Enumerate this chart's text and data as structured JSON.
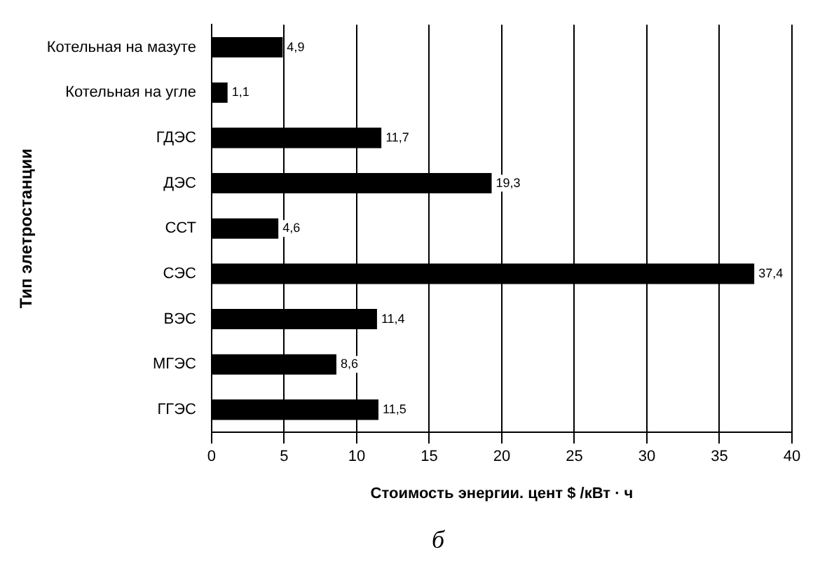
{
  "chart_data": {
    "type": "bar",
    "orientation": "horizontal",
    "ylabel": "Тип элетростанции",
    "xlabel": "Стоимость энергии. цент $ /кВт · ч",
    "categories": [
      "Котельная на мазуте",
      "Котельная на угле",
      "ГДЭС",
      "ДЭС",
      "ССТ",
      "СЭС",
      "ВЭС",
      "МГЭС",
      "ГГЭС"
    ],
    "values": [
      4.9,
      1.1,
      11.7,
      19.3,
      4.6,
      37.4,
      11.4,
      8.6,
      11.5
    ],
    "value_labels": [
      "4,9",
      "1,1",
      "11,7",
      "19,3",
      "4,6",
      "37,4",
      "11,4",
      "8,6",
      "11,5"
    ],
    "color": "#000000",
    "xlim": [
      0,
      40
    ],
    "xticks": [
      0,
      5,
      10,
      15,
      20,
      25,
      30,
      35,
      40
    ],
    "grid": "x",
    "legend": false,
    "annotations": [
      "б"
    ]
  }
}
